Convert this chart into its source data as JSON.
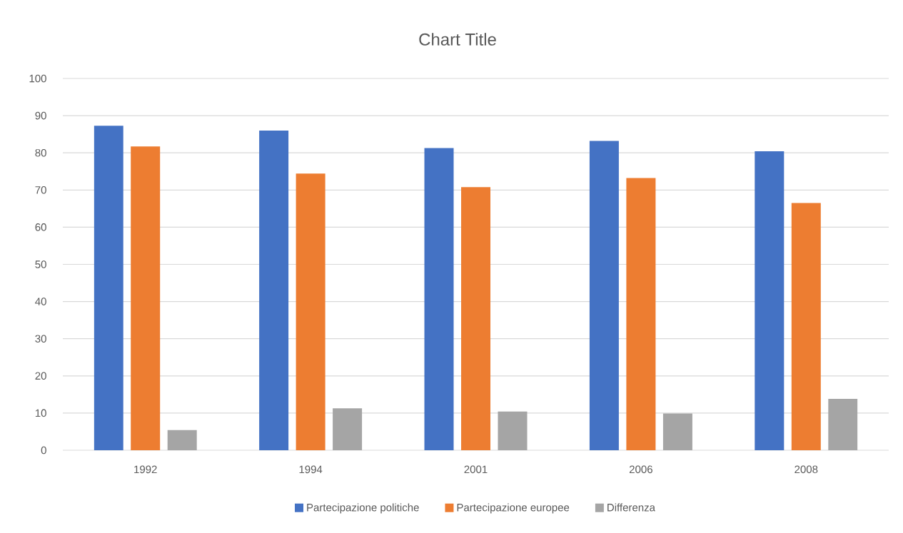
{
  "chart_data": {
    "type": "bar",
    "title": "Chart Title",
    "categories": [
      "1992",
      "1994",
      "2001",
      "2006",
      "2008"
    ],
    "series": [
      {
        "name": "Partecipazione politiche",
        "color": "#4472c4",
        "values": [
          87.3,
          86.0,
          81.3,
          83.2,
          80.4
        ]
      },
      {
        "name": "Partecipazione europee",
        "color": "#ed7d31",
        "values": [
          81.7,
          74.4,
          70.8,
          73.2,
          66.5
        ]
      },
      {
        "name": "Differenza",
        "color": "#a5a5a5",
        "values": [
          5.4,
          11.3,
          10.4,
          9.9,
          13.8
        ]
      }
    ],
    "ylim": [
      0,
      100
    ],
    "yticks": [
      0,
      10,
      20,
      30,
      40,
      50,
      60,
      70,
      80,
      90,
      100
    ],
    "grid": "y",
    "legend": "bottom"
  }
}
